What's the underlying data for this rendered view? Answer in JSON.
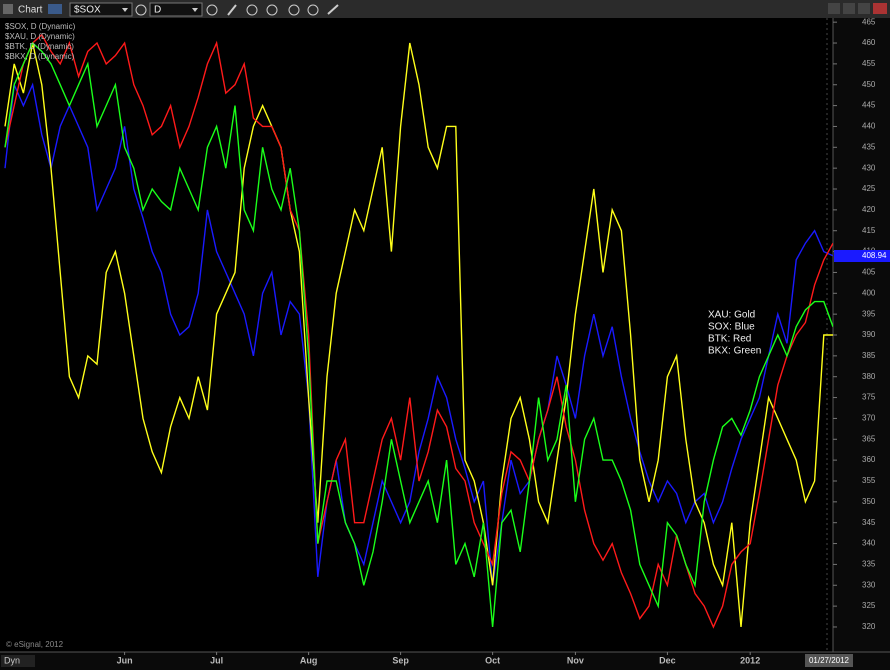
{
  "toolbar": {
    "title": "Chart",
    "symbol": "$SOX",
    "interval": "D"
  },
  "chart_data": {
    "type": "line",
    "categories": [
      null,
      null,
      null,
      null,
      null,
      null,
      null,
      null,
      null,
      null,
      null,
      null,
      null,
      "Jun",
      null,
      null,
      null,
      null,
      null,
      null,
      null,
      null,
      null,
      "Jul",
      null,
      null,
      null,
      null,
      null,
      null,
      null,
      null,
      null,
      "Aug",
      null,
      null,
      null,
      null,
      null,
      null,
      null,
      null,
      null,
      "Sep",
      null,
      null,
      null,
      null,
      null,
      null,
      null,
      null,
      null,
      "Oct",
      null,
      null,
      null,
      null,
      null,
      null,
      null,
      null,
      "Nov",
      null,
      null,
      null,
      null,
      null,
      null,
      null,
      null,
      null,
      "Dec",
      null,
      null,
      null,
      null,
      null,
      null,
      null,
      null,
      "2012",
      null,
      null,
      null,
      null,
      null,
      null,
      null,
      null,
      null
    ],
    "series": [
      {
        "name": "$SOX, D (Dynamic)",
        "color": "#1a1aff",
        "values": [
          430,
          450,
          445,
          450,
          438,
          430,
          440,
          445,
          440,
          435,
          420,
          425,
          430,
          440,
          425,
          418,
          410,
          405,
          395,
          390,
          392,
          400,
          420,
          410,
          405,
          400,
          395,
          385,
          400,
          405,
          390,
          398,
          395,
          375,
          332,
          350,
          360,
          345,
          340,
          335,
          345,
          355,
          350,
          345,
          350,
          362,
          370,
          380,
          375,
          365,
          358,
          350,
          355,
          330,
          345,
          360,
          352,
          355,
          365,
          372,
          385,
          378,
          370,
          385,
          395,
          385,
          392,
          380,
          370,
          362,
          355,
          350,
          355,
          352,
          345,
          350,
          352,
          345,
          350,
          358,
          365,
          370,
          375,
          385,
          395,
          388,
          408,
          412,
          415,
          410,
          409
        ]
      },
      {
        "name": "$XAU, D (Dynamic)",
        "color": "#ffff1a",
        "values": [
          440,
          455,
          448,
          460,
          450,
          430,
          405,
          380,
          375,
          385,
          383,
          405,
          410,
          400,
          385,
          370,
          362,
          357,
          368,
          375,
          370,
          380,
          372,
          395,
          400,
          405,
          430,
          440,
          445,
          440,
          435,
          420,
          410,
          375,
          345,
          380,
          400,
          410,
          420,
          415,
          425,
          435,
          410,
          440,
          460,
          450,
          435,
          430,
          440,
          440,
          360,
          355,
          345,
          330,
          355,
          370,
          375,
          365,
          350,
          345,
          360,
          375,
          395,
          410,
          425,
          405,
          420,
          415,
          390,
          360,
          350,
          360,
          380,
          385,
          365,
          350,
          345,
          335,
          330,
          345,
          320,
          345,
          360,
          375,
          370,
          365,
          360,
          350,
          355,
          390,
          390
        ]
      },
      {
        "name": "$BTK, D (Dynamic)",
        "color": "#ff1a1a",
        "values": [
          435,
          445,
          455,
          460,
          462,
          458,
          455,
          460,
          452,
          458,
          460,
          455,
          457,
          460,
          450,
          445,
          438,
          440,
          445,
          435,
          440,
          447,
          455,
          460,
          448,
          450,
          455,
          442,
          440,
          440,
          435,
          420,
          415,
          390,
          340,
          350,
          360,
          365,
          345,
          345,
          355,
          365,
          370,
          360,
          375,
          355,
          362,
          372,
          368,
          358,
          355,
          345,
          340,
          335,
          352,
          362,
          360,
          355,
          365,
          372,
          380,
          368,
          360,
          348,
          340,
          336,
          340,
          333,
          328,
          322,
          325,
          335,
          330,
          342,
          335,
          328,
          325,
          320,
          325,
          335,
          338,
          340,
          352,
          365,
          378,
          385,
          390,
          393,
          402,
          408,
          412
        ]
      },
      {
        "name": "$BKX, D (Dynamic)",
        "color": "#1aff1a",
        "values": [
          435,
          450,
          455,
          460,
          458,
          455,
          450,
          445,
          450,
          455,
          440,
          445,
          450,
          435,
          430,
          420,
          425,
          422,
          420,
          430,
          425,
          420,
          435,
          440,
          430,
          445,
          420,
          415,
          435,
          425,
          420,
          430,
          415,
          385,
          340,
          355,
          355,
          345,
          340,
          330,
          338,
          350,
          365,
          355,
          345,
          350,
          355,
          345,
          360,
          335,
          340,
          332,
          345,
          320,
          345,
          348,
          338,
          355,
          375,
          360,
          365,
          378,
          350,
          365,
          370,
          360,
          360,
          355,
          348,
          335,
          330,
          325,
          345,
          342,
          335,
          330,
          350,
          360,
          368,
          370,
          366,
          372,
          380,
          385,
          390,
          385,
          392,
          396,
          398,
          398,
          392
        ]
      }
    ],
    "ylim": [
      314,
      466
    ],
    "yticks": [
      320,
      325,
      330,
      335,
      340,
      345,
      350,
      355,
      360,
      365,
      370,
      375,
      380,
      385,
      390,
      395,
      400,
      405,
      410,
      415,
      420,
      425,
      430,
      435,
      440,
      445,
      450,
      455,
      460,
      465
    ],
    "grid": false,
    "last_value": 408.94,
    "cursor_date": "01/27/2012",
    "annotations": [
      "XAU:  Gold",
      "SOX:  Blue",
      "BTK:  Red",
      "BKX:  Green"
    ],
    "copyright": "© eSignal, 2012",
    "mode": "Dyn"
  }
}
